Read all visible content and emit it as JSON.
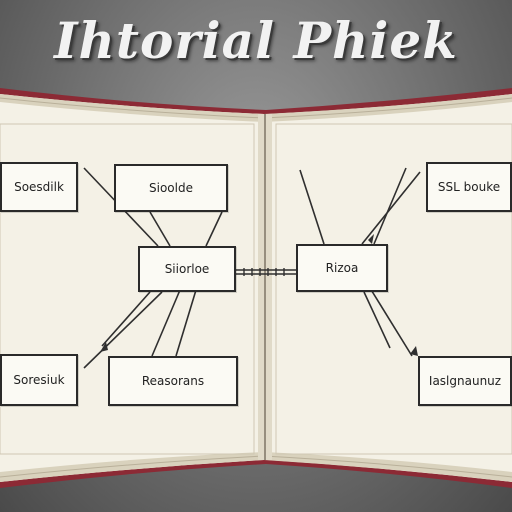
{
  "title": "Ihtorial Phiek",
  "colors": {
    "page": "#f4f1e6",
    "page_shadow": "#e2ddcc",
    "book_edge": "#8c2a35",
    "book_spine": "#9a8f7e",
    "box_border": "#2a2a2a",
    "line": "#2f2f2f"
  },
  "diagram": {
    "nodes": {
      "n1": "Soesdilk",
      "n2": "Sioolde",
      "n3": "Siiorloe",
      "n4": "Reasorans",
      "n5": "Soresiuk",
      "n6": "Rizoa",
      "n7": "SSL bouke",
      "n8": "Iaslgnaunuz"
    }
  }
}
